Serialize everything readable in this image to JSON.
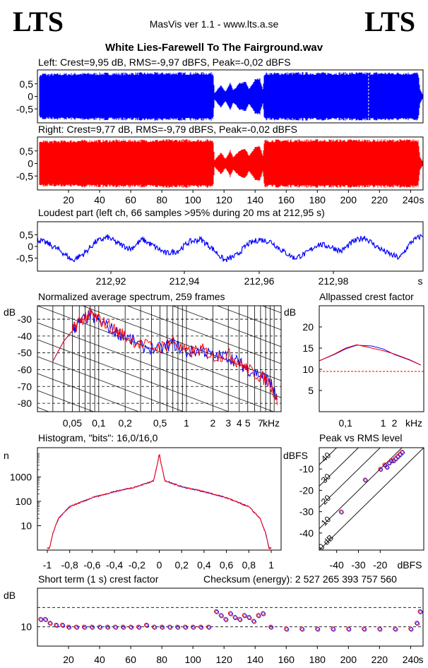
{
  "header": {
    "logo_left": "LTS",
    "logo_right": "LTS",
    "app_title": "MasVis ver 1.1 - www.lts.a.se",
    "file_title": "White Lies-Farewell To The Fairground.wav"
  },
  "colors": {
    "left": "#0000ff",
    "right": "#ff0000",
    "frame": "#000000",
    "reference": "#ff0000"
  },
  "chart_data": [
    {
      "type": "area",
      "id": "left-waveform",
      "title": "Left: Crest=9,95 dB, RMS=-9,97 dBFS, Peak=-0,02 dBFS",
      "ylim": [
        -1,
        1
      ],
      "yticks": [
        0.5,
        0,
        -0.5
      ],
      "ytick_labels": [
        "0,5",
        "0",
        "-0,5"
      ],
      "xlim": [
        0,
        248
      ],
      "envelope": [
        [
          1,
          0.85
        ],
        [
          4,
          0.95
        ],
        [
          6,
          0.92
        ],
        [
          30,
          0.95
        ],
        [
          60,
          0.96
        ],
        [
          90,
          0.97
        ],
        [
          113,
          0.97
        ],
        [
          114,
          0.15
        ],
        [
          118,
          0.45
        ],
        [
          121,
          0.2
        ],
        [
          124,
          0.55
        ],
        [
          126,
          0.25
        ],
        [
          130,
          0.55
        ],
        [
          134,
          0.6
        ],
        [
          136,
          0.3
        ],
        [
          140,
          0.7
        ],
        [
          143,
          0.75
        ],
        [
          145,
          0.3
        ],
        [
          146,
          0.96
        ],
        [
          170,
          0.97
        ],
        [
          200,
          0.97
        ],
        [
          230,
          0.97
        ],
        [
          245,
          0.97
        ],
        [
          246,
          0.3
        ],
        [
          248,
          0.05
        ]
      ],
      "marker_x": 212.95
    },
    {
      "type": "area",
      "id": "right-waveform",
      "title": "Right: Crest=9,77 dB, RMS=-9,79 dBFS, Peak=-0,02 dBFS",
      "ylim": [
        -1,
        1
      ],
      "yticks": [
        0.5,
        0,
        -0.5
      ],
      "ytick_labels": [
        "0,5",
        "0",
        "-0,5"
      ],
      "xlim": [
        0,
        248
      ],
      "xticks": [
        20,
        40,
        60,
        80,
        100,
        120,
        140,
        160,
        180,
        200,
        220,
        240
      ],
      "xunit": "s",
      "envelope": [
        [
          1,
          0.85
        ],
        [
          4,
          0.95
        ],
        [
          6,
          0.92
        ],
        [
          30,
          0.95
        ],
        [
          60,
          0.96
        ],
        [
          90,
          0.97
        ],
        [
          113,
          0.97
        ],
        [
          114,
          0.15
        ],
        [
          118,
          0.45
        ],
        [
          121,
          0.2
        ],
        [
          124,
          0.55
        ],
        [
          126,
          0.25
        ],
        [
          130,
          0.55
        ],
        [
          134,
          0.6
        ],
        [
          136,
          0.3
        ],
        [
          140,
          0.7
        ],
        [
          143,
          0.75
        ],
        [
          145,
          0.3
        ],
        [
          146,
          0.96
        ],
        [
          170,
          0.97
        ],
        [
          200,
          0.97
        ],
        [
          230,
          0.97
        ],
        [
          245,
          0.97
        ],
        [
          246,
          0.3
        ],
        [
          248,
          0.05
        ]
      ]
    },
    {
      "type": "line",
      "id": "loudest-part",
      "title": "Loudest part (left  ch, 66 samples >95% during 20 ms at 212,95 s)",
      "ylim": [
        -1,
        1
      ],
      "yticks": [
        0.5,
        0,
        -0.5
      ],
      "ytick_labels": [
        "0,5",
        "0",
        "-0,5"
      ],
      "xlim": [
        212.905,
        212.925
      ],
      "xticks": [
        212.92,
        212.94,
        212.96,
        212.98
      ],
      "xtick_labels": [
        "212,92",
        "212,94",
        "212,96",
        "212,98"
      ],
      "xunit": "s",
      "x": [
        0.0,
        0.003,
        0.006,
        0.009,
        0.012,
        0.015,
        0.018,
        0.021,
        0.024,
        0.027,
        0.03,
        0.033,
        0.036,
        0.039,
        0.042,
        0.045,
        0.048,
        0.051,
        0.054,
        0.057,
        0.06,
        0.063,
        0.066,
        0.069,
        0.072,
        0.075,
        0.078,
        0.081,
        0.084,
        0.087,
        0.09,
        0.093,
        0.096,
        0.099
      ],
      "values": [
        0.3,
        0.1,
        -0.2,
        -0.6,
        -0.3,
        0.2,
        0.4,
        0.1,
        -0.1,
        0.3,
        0.0,
        -0.3,
        -0.2,
        0.2,
        0.3,
        -0.1,
        -0.6,
        -0.4,
        0.1,
        0.3,
        0.2,
        -0.2,
        -0.5,
        -0.3,
        0.1,
        0.0,
        -0.2,
        0.2,
        0.4,
        0.0,
        -0.3,
        -0.5,
        0.2,
        0.5
      ]
    },
    {
      "type": "line",
      "id": "normalized-spectrum",
      "title": "Normalized average spectrum, 259 frames",
      "ylabel": "dB",
      "yticks": [
        -30,
        -40,
        -50,
        -60,
        -70,
        -80
      ],
      "xunit": "kHz",
      "xtick_labels": [
        "0,05",
        "0,1",
        "0,2",
        "0,5",
        "1",
        "2",
        "3",
        "4",
        "5",
        "7"
      ],
      "series": [
        {
          "color": "#0000ff",
          "x": [
            0.03,
            0.04,
            0.05,
            0.06,
            0.08,
            0.1,
            0.15,
            0.2,
            0.3,
            0.5,
            0.7,
            1,
            1.5,
            2,
            3,
            4,
            5,
            7,
            9,
            11
          ],
          "y": [
            -55,
            -43,
            -37,
            -32,
            -28,
            -31,
            -37,
            -40,
            -46,
            -48,
            -44,
            -50,
            -48,
            -52,
            -52,
            -56,
            -60,
            -63,
            -67,
            -79
          ]
        },
        {
          "color": "#ff0000",
          "x": [
            0.03,
            0.04,
            0.05,
            0.06,
            0.08,
            0.1,
            0.15,
            0.2,
            0.3,
            0.5,
            0.7,
            1,
            1.5,
            2,
            3,
            4,
            5,
            7,
            9,
            11
          ],
          "y": [
            -55,
            -43,
            -37,
            -31,
            -27,
            -30,
            -36,
            -40,
            -45,
            -47,
            -43,
            -50,
            -48,
            -52,
            -51,
            -56,
            -60,
            -64,
            -68,
            -80
          ]
        }
      ]
    },
    {
      "type": "line",
      "id": "allpassed-crest",
      "title": "Allpassed crest factor",
      "ylabel": "dB",
      "yticks": [
        20,
        15,
        10,
        5
      ],
      "xtick_labels": [
        "0,1",
        "1",
        "2",
        "kHz"
      ],
      "reference_y": 9.5,
      "series": [
        {
          "color": "#0000ff",
          "x": [
            0.02,
            0.05,
            0.1,
            0.2,
            0.5,
            1,
            2,
            5,
            10
          ],
          "y": [
            12,
            13.5,
            14.8,
            15.7,
            15.5,
            14.8,
            13.5,
            12.2,
            11
          ]
        },
        {
          "color": "#ff0000",
          "x": [
            0.02,
            0.05,
            0.1,
            0.2,
            0.5,
            1,
            2,
            5,
            10
          ],
          "y": [
            12,
            13.6,
            15,
            15.8,
            15,
            14.4,
            13.6,
            12.3,
            11
          ]
        }
      ]
    },
    {
      "type": "line",
      "id": "histogram",
      "title": "Histogram, \"bits\": 16,0/16,0",
      "ylabel": "n",
      "yticks": [
        1000,
        100,
        10
      ],
      "ytick_labels": [
        "1000",
        "100",
        "10"
      ],
      "xlim": [
        -1,
        1
      ],
      "xticks": [
        -1,
        -0.8,
        -0.6,
        -0.4,
        -0.2,
        0,
        0.2,
        0.4,
        0.6,
        0.8,
        1
      ],
      "xtick_labels": [
        "-1",
        "-0,8",
        "-0,6",
        "-0,4",
        "-0,2",
        "0",
        "0,2",
        "0,4",
        "0,6",
        "0,8",
        "1"
      ],
      "x": [
        -0.98,
        -0.95,
        -0.9,
        -0.8,
        -0.6,
        -0.4,
        -0.2,
        -0.05,
        0,
        0.05,
        0.2,
        0.4,
        0.6,
        0.8,
        0.9,
        0.95,
        0.98
      ],
      "values": [
        1.2,
        5,
        20,
        60,
        140,
        250,
        400,
        700,
        8000,
        700,
        400,
        250,
        140,
        60,
        20,
        5,
        1.2
      ]
    },
    {
      "type": "scatter",
      "id": "peak-vs-rms",
      "title": "Peak vs RMS level",
      "ylabel": "dBFS",
      "xlabel": "dBFS",
      "yticks": [
        -10,
        -20,
        -30,
        -40
      ],
      "xticks": [
        -40,
        -30,
        -20
      ],
      "diagonal_labels": [
        "40",
        "30",
        "20",
        "10",
        "0 dB"
      ],
      "x": [
        -38,
        -27,
        -20,
        -18,
        -16,
        -14,
        -12,
        -10,
        -13,
        -15,
        -17,
        -11
      ],
      "y": [
        -30,
        -15,
        -10,
        -8,
        -7,
        -6,
        -4,
        -2,
        -5,
        -6,
        -9,
        -3
      ]
    },
    {
      "type": "scatter",
      "id": "short-term-crest",
      "title": "Short term (1 s) crest factor",
      "ylabel": "dB",
      "xlim": [
        0,
        248
      ],
      "xticks": [
        20,
        40,
        60,
        80,
        100,
        120,
        140,
        160,
        180,
        200,
        220,
        240
      ],
      "xunit": "s",
      "dashed_lines": [
        10,
        20
      ],
      "ytick_labels": [
        "10"
      ],
      "x": [
        2,
        5,
        8,
        12,
        16,
        20,
        25,
        30,
        35,
        40,
        45,
        50,
        55,
        60,
        65,
        70,
        75,
        80,
        85,
        90,
        95,
        100,
        105,
        110,
        115,
        118,
        121,
        124,
        127,
        130,
        133,
        136,
        139,
        142,
        145,
        150,
        160,
        170,
        180,
        190,
        200,
        210,
        220,
        230,
        240,
        244,
        246
      ],
      "values": [
        14,
        14,
        12,
        11,
        11,
        10,
        10,
        10,
        10,
        10,
        10,
        10,
        10,
        10,
        10,
        11,
        10,
        10,
        10,
        10,
        10,
        10,
        10,
        10,
        18,
        16,
        14,
        17,
        15,
        14,
        16,
        15,
        13,
        16,
        17,
        10,
        9,
        9,
        9,
        9,
        9,
        9,
        9,
        9,
        9,
        12,
        18
      ]
    }
  ],
  "checksum_text": "Checksum (energy):  2 527 265 393 757 560"
}
